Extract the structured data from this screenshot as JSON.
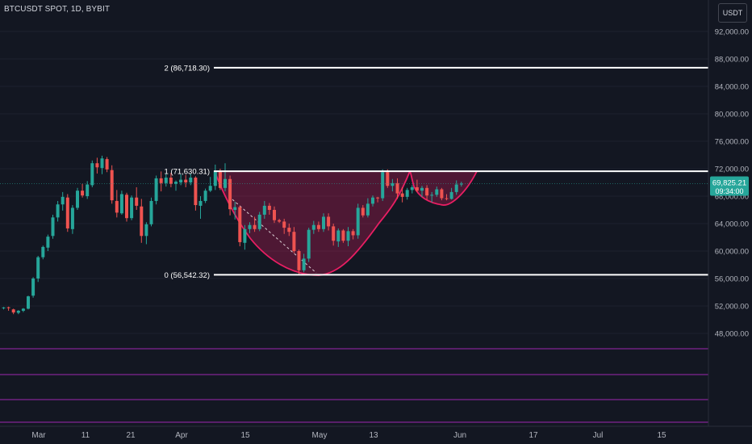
{
  "header": {
    "symbol": "BTCUSDT SPOT, 1D, BYBIT",
    "currency": "USDT"
  },
  "colors": {
    "background": "#131722",
    "up": "#26a69a",
    "down": "#ef5350",
    "shape": "#e91e63",
    "axis_text": "#b2b5be",
    "purple": "#9c27b0"
  },
  "chart_data": {
    "type": "candlestick",
    "title": "BTCUSDT SPOT, 1D, BYBIT",
    "y_axis": {
      "ticks": [
        "48,000.00",
        "52,000.00",
        "56,000.00",
        "60,000.00",
        "64,000.00",
        "68,000.00",
        "72,000.00",
        "76,000.00",
        "80,000.00",
        "84,000.00",
        "88,000.00",
        "92,000.00"
      ],
      "range": [
        45500,
        94500
      ]
    },
    "x_axis": {
      "ticks": [
        "Mar",
        "11",
        "21",
        "Apr",
        "15",
        "May",
        "13",
        "Jun",
        "17",
        "Jul",
        "15"
      ]
    },
    "last_price": {
      "value": "69,825.21",
      "countdown": "09:34:00"
    },
    "levels": [
      {
        "label": "2 (86,718.30)",
        "value": 86718.3
      },
      {
        "label": "1 (71,630.31)",
        "value": 71630.31
      },
      {
        "label": "0 (56,542.32)",
        "value": 56542.32
      }
    ],
    "candles": [
      [
        51700,
        51850,
        51500,
        51780
      ],
      [
        51800,
        51900,
        51300,
        51700
      ],
      [
        51500,
        51600,
        50800,
        51050
      ],
      [
        51000,
        51400,
        50800,
        51300
      ],
      [
        51300,
        51700,
        51100,
        51600
      ],
      [
        51600,
        53500,
        51500,
        53400
      ],
      [
        53500,
        56200,
        53200,
        56000
      ],
      [
        56000,
        59300,
        55500,
        59100
      ],
      [
        59100,
        60800,
        58800,
        60600
      ],
      [
        60500,
        62400,
        60000,
        62100
      ],
      [
        62200,
        65300,
        61800,
        64900
      ],
      [
        64900,
        67300,
        64300,
        66800
      ],
      [
        66800,
        68600,
        65900,
        67900
      ],
      [
        67800,
        68300,
        62800,
        63300
      ],
      [
        63200,
        66700,
        62500,
        66300
      ],
      [
        66300,
        69200,
        66000,
        68800
      ],
      [
        68800,
        69800,
        67800,
        68100
      ],
      [
        68000,
        70200,
        67600,
        69700
      ],
      [
        69600,
        73200,
        69300,
        72800
      ],
      [
        72800,
        73600,
        71300,
        72200
      ],
      [
        72100,
        73900,
        71200,
        73500
      ],
      [
        73400,
        73700,
        71500,
        71900
      ],
      [
        71800,
        72500,
        66900,
        67400
      ],
      [
        67300,
        68900,
        64900,
        65600
      ],
      [
        65500,
        68800,
        65300,
        68300
      ],
      [
        68200,
        68500,
        64300,
        64800
      ],
      [
        64800,
        68100,
        64500,
        67800
      ],
      [
        67800,
        69300,
        66000,
        66600
      ],
      [
        66500,
        67600,
        61200,
        62200
      ],
      [
        62200,
        64200,
        61000,
        63900
      ],
      [
        63900,
        67800,
        63600,
        67300
      ],
      [
        67300,
        71000,
        66800,
        70600
      ],
      [
        70600,
        71600,
        68700,
        69900
      ],
      [
        69900,
        71200,
        69400,
        70700
      ],
      [
        70700,
        71400,
        69300,
        69800
      ],
      [
        69800,
        70300,
        68800,
        70100
      ],
      [
        70000,
        71200,
        69600,
        70400
      ],
      [
        70400,
        71100,
        69300,
        70000
      ],
      [
        70000,
        71300,
        69600,
        70700
      ],
      [
        70700,
        70900,
        65900,
        66700
      ],
      [
        66600,
        68000,
        64700,
        67300
      ],
      [
        67300,
        69100,
        67000,
        68800
      ],
      [
        68800,
        70800,
        68600,
        69500
      ],
      [
        69500,
        72600,
        68900,
        71700
      ],
      [
        71700,
        72000,
        68900,
        69200
      ],
      [
        69200,
        72800,
        68700,
        70500
      ],
      [
        70500,
        71000,
        65200,
        66100
      ],
      [
        66000,
        67200,
        64600,
        66400
      ],
      [
        66400,
        66600,
        60700,
        61300
      ],
      [
        61200,
        63800,
        60200,
        63200
      ],
      [
        63200,
        64200,
        62600,
        63800
      ],
      [
        63800,
        65000,
        62800,
        63200
      ],
      [
        63200,
        65700,
        62900,
        65300
      ],
      [
        65300,
        67300,
        64700,
        66600
      ],
      [
        66600,
        67000,
        65300,
        66000
      ],
      [
        66000,
        66500,
        64100,
        64500
      ],
      [
        64500,
        64700,
        64100,
        64300
      ],
      [
        64300,
        64700,
        62500,
        63400
      ],
      [
        63400,
        64000,
        62200,
        62800
      ],
      [
        62800,
        63500,
        59700,
        60000
      ],
      [
        60000,
        60200,
        56500,
        57200
      ],
      [
        57200,
        59600,
        56900,
        58900
      ],
      [
        58900,
        63400,
        58400,
        63100
      ],
      [
        63100,
        64400,
        62500,
        63800
      ],
      [
        63800,
        64300,
        62800,
        63200
      ],
      [
        63200,
        65500,
        62800,
        65000
      ],
      [
        65000,
        65500,
        63000,
        63600
      ],
      [
        63600,
        64000,
        60800,
        61500
      ],
      [
        61400,
        63300,
        60600,
        63000
      ],
      [
        63000,
        63200,
        61200,
        61500
      ],
      [
        61500,
        63500,
        60700,
        62900
      ],
      [
        62900,
        63200,
        61700,
        62300
      ],
      [
        62300,
        66900,
        61800,
        66300
      ],
      [
        66300,
        66700,
        64900,
        65200
      ],
      [
        65200,
        67700,
        64900,
        66900
      ],
      [
        66900,
        68100,
        66500,
        67800
      ],
      [
        67800,
        67900,
        67100,
        67700
      ],
      [
        67700,
        71900,
        67300,
        71500
      ],
      [
        71500,
        71900,
        69200,
        69500
      ],
      [
        69500,
        70500,
        68700,
        69900
      ],
      [
        69900,
        70600,
        67600,
        68400
      ],
      [
        68400,
        69300,
        67100,
        67900
      ],
      [
        67900,
        69200,
        67500,
        68900
      ],
      [
        68900,
        69600,
        68400,
        69300
      ],
      [
        69300,
        70400,
        68600,
        68800
      ],
      [
        68800,
        69500,
        67900,
        69200
      ],
      [
        69200,
        69600,
        67500,
        68100
      ],
      [
        68100,
        68600,
        67100,
        68200
      ],
      [
        68200,
        69400,
        67900,
        69000
      ],
      [
        69000,
        69200,
        67400,
        67700
      ],
      [
        67700,
        68300,
        67400,
        67600
      ],
      [
        67600,
        69200,
        67500,
        68600
      ],
      [
        68600,
        70300,
        68200,
        69700
      ],
      [
        69700,
        70100,
        69400,
        69825
      ]
    ]
  }
}
